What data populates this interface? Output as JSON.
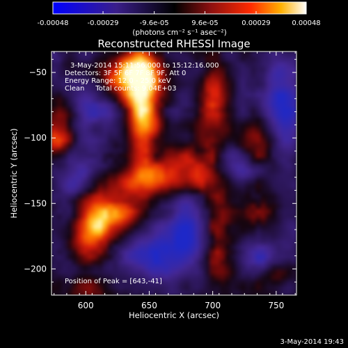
{
  "chart_data": {
    "type": "heatmap",
    "title": "Reconstructed RHESSI Image",
    "xlabel": "Heliocentric X (arcsec)",
    "ylabel": "Heliocentric Y (arcsec)",
    "xlim": [
      573,
      766
    ],
    "ylim": [
      -220,
      -34
    ],
    "x_ticks": [
      600,
      650,
      700,
      750
    ],
    "y_ticks": [
      -50,
      -100,
      -150,
      -200
    ],
    "colorbar": {
      "range": [
        -0.00048,
        0.00048
      ],
      "ticks": [
        -0.00048,
        -0.00029,
        -9.6e-05,
        9.6e-05,
        0.00029,
        0.00048
      ],
      "tick_labels": [
        "-0.00048",
        "-0.00029",
        "-9.6e-05",
        "9.6e-05",
        "0.00029",
        "0.00048"
      ],
      "unit_label": "(photons cm⁻² s⁻¹ asec⁻²)"
    },
    "annotations": {
      "time_range": "3-May-2014 15:11:56.000 to 15:12:16.000",
      "detectors": "Detectors: 3F 5F 6F 7F 8F 9F, Att 0",
      "energy_range": "Energy Range: 12.0 - 25.0 keV",
      "clean_counts": "Clean     Total counts: 9.04E+03",
      "peak": "Position of Peak = [643,-41]"
    },
    "peak_position": [
      643,
      -41
    ],
    "footer_timestamp": "3-May-2014 19:43",
    "colors": {
      "background": "#000000",
      "negative": "#3a1e8a",
      "positive_low": "#c8202a",
      "positive_high": "#ffffcc"
    },
    "emission_features": [
      {
        "x": 645,
        "y": -75,
        "sx": 10,
        "sy": 34,
        "amp": 0.00052
      },
      {
        "x": 633,
        "y": -52,
        "sx": 18,
        "sy": 12,
        "amp": 0.0004
      },
      {
        "x": 656,
        "y": -132,
        "sx": 40,
        "sy": 9,
        "amp": 0.00032
      },
      {
        "x": 605,
        "y": -168,
        "sx": 12,
        "sy": 18,
        "amp": 0.00042
      },
      {
        "x": 625,
        "y": -158,
        "sx": 14,
        "sy": 12,
        "amp": 0.00032
      },
      {
        "x": 577,
        "y": -98,
        "sx": 10,
        "sy": 22,
        "amp": 0.00036
      },
      {
        "x": 700,
        "y": -72,
        "sx": 9,
        "sy": 22,
        "amp": 0.0003
      },
      {
        "x": 735,
        "y": -102,
        "sx": 10,
        "sy": 16,
        "amp": 0.00026
      },
      {
        "x": 705,
        "y": -178,
        "sx": 10,
        "sy": 32,
        "amp": 0.00026
      },
      {
        "x": 735,
        "y": -158,
        "sx": 9,
        "sy": 14,
        "amp": 0.00018
      },
      {
        "x": 683,
        "y": -118,
        "sx": 15,
        "sy": 10,
        "amp": 0.00022
      },
      {
        "x": 748,
        "y": -205,
        "sx": 12,
        "sy": 10,
        "amp": 0.00016
      },
      {
        "x": 600,
        "y": -215,
        "sx": 15,
        "sy": 8,
        "amp": 0.00018
      }
    ],
    "absorption_features": [
      {
        "x": 590,
        "y": -130,
        "sx": 14,
        "sy": 14,
        "amp": -0.00032
      },
      {
        "x": 755,
        "y": -75,
        "sx": 10,
        "sy": 24,
        "amp": -0.00034
      },
      {
        "x": 678,
        "y": -170,
        "sx": 12,
        "sy": 18,
        "amp": -0.00032
      },
      {
        "x": 650,
        "y": -190,
        "sx": 18,
        "sy": 10,
        "amp": -0.00028
      },
      {
        "x": 720,
        "y": -125,
        "sx": 12,
        "sy": 12,
        "amp": -0.00026
      },
      {
        "x": 605,
        "y": -75,
        "sx": 12,
        "sy": 12,
        "amp": -0.00022
      },
      {
        "x": 740,
        "y": -190,
        "sx": 10,
        "sy": 10,
        "amp": -0.00024
      }
    ]
  }
}
